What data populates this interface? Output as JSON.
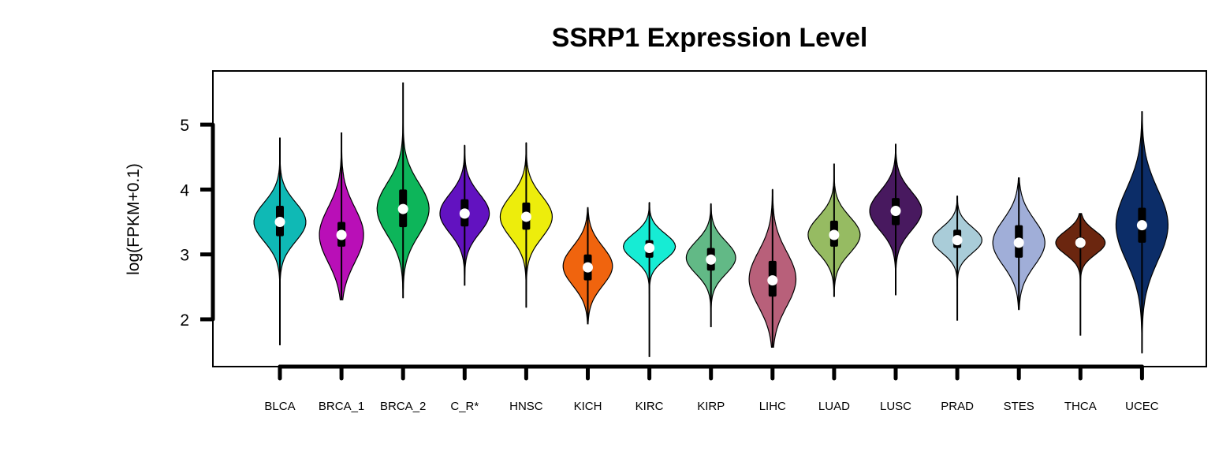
{
  "chart_data": {
    "type": "violin",
    "title": "SSRP1 Expression Level",
    "xlabel": "",
    "ylabel": "log(FPKM+0.1)",
    "ylim": [
      1.3,
      5.8
    ],
    "yticks": [
      2,
      3,
      4,
      5
    ],
    "grid": false,
    "series": [
      {
        "category": "BLCA",
        "color": "#0fb9b5",
        "min": 1.6,
        "max": 4.8,
        "q1": 3.28,
        "median": 3.5,
        "q3": 3.75,
        "mode": 3.5,
        "spread": 0.3,
        "width": 1.0
      },
      {
        "category": "BRCA_1",
        "color": "#b90fb7",
        "min": 2.3,
        "max": 4.88,
        "q1": 3.12,
        "median": 3.3,
        "q3": 3.5,
        "mode": 3.3,
        "spread": 0.42,
        "width": 0.85
      },
      {
        "category": "BRCA_2",
        "color": "#0db55a",
        "min": 2.33,
        "max": 5.65,
        "q1": 3.42,
        "median": 3.7,
        "q3": 4.0,
        "mode": 3.7,
        "spread": 0.4,
        "width": 1.0
      },
      {
        "category": "C_R*",
        "color": "#6212c0",
        "min": 2.52,
        "max": 4.68,
        "q1": 3.43,
        "median": 3.63,
        "q3": 3.85,
        "mode": 3.63,
        "spread": 0.3,
        "width": 0.95
      },
      {
        "category": "HNSC",
        "color": "#eded0c",
        "min": 2.18,
        "max": 4.72,
        "q1": 3.38,
        "median": 3.58,
        "q3": 3.8,
        "mode": 3.58,
        "spread": 0.32,
        "width": 1.0
      },
      {
        "category": "KICH",
        "color": "#f0640e",
        "min": 1.93,
        "max": 3.72,
        "q1": 2.6,
        "median": 2.8,
        "q3": 3.0,
        "mode": 2.82,
        "spread": 0.3,
        "width": 0.95
      },
      {
        "category": "KIRC",
        "color": "#16ecd4",
        "min": 1.42,
        "max": 3.8,
        "q1": 2.95,
        "median": 3.1,
        "q3": 3.22,
        "mode": 3.12,
        "spread": 0.2,
        "width": 1.0
      },
      {
        "category": "KIRP",
        "color": "#62b986",
        "min": 1.88,
        "max": 3.78,
        "q1": 2.75,
        "median": 2.92,
        "q3": 3.1,
        "mode": 2.95,
        "spread": 0.25,
        "width": 0.95
      },
      {
        "category": "LIHC",
        "color": "#b8607a",
        "min": 1.57,
        "max": 4.0,
        "q1": 2.35,
        "median": 2.6,
        "q3": 2.9,
        "mode": 2.62,
        "spread": 0.42,
        "width": 0.9
      },
      {
        "category": "LUAD",
        "color": "#96bb62",
        "min": 2.35,
        "max": 4.4,
        "q1": 3.12,
        "median": 3.3,
        "q3": 3.52,
        "mode": 3.3,
        "spread": 0.28,
        "width": 1.0
      },
      {
        "category": "LUSC",
        "color": "#48195f",
        "min": 2.37,
        "max": 4.7,
        "q1": 3.45,
        "median": 3.67,
        "q3": 3.87,
        "mode": 3.67,
        "spread": 0.3,
        "width": 1.0
      },
      {
        "category": "PRAD",
        "color": "#a9ccd8",
        "min": 1.98,
        "max": 3.9,
        "q1": 3.1,
        "median": 3.22,
        "q3": 3.38,
        "mode": 3.22,
        "spread": 0.2,
        "width": 0.95
      },
      {
        "category": "STES",
        "color": "#a0aed8",
        "min": 2.15,
        "max": 4.18,
        "q1": 2.95,
        "median": 3.18,
        "q3": 3.45,
        "mode": 3.18,
        "spread": 0.35,
        "width": 1.0
      },
      {
        "category": "THCA",
        "color": "#6b260f",
        "min": 1.75,
        "max": 3.63,
        "q1": 3.1,
        "median": 3.18,
        "q3": 3.26,
        "mode": 3.18,
        "spread": 0.18,
        "width": 0.95
      },
      {
        "category": "UCEC",
        "color": "#0c2d68",
        "min": 1.48,
        "max": 5.2,
        "q1": 3.18,
        "median": 3.45,
        "q3": 3.72,
        "mode": 3.45,
        "spread": 0.55,
        "width": 1.0
      }
    ]
  }
}
